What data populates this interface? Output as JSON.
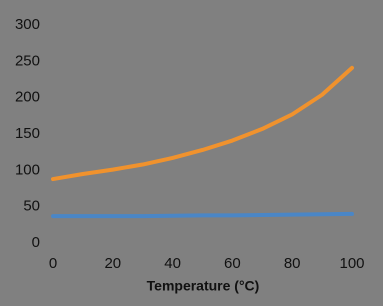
{
  "chart_data": {
    "type": "line",
    "x_label": "Temperature (°C)",
    "x": [
      0,
      10,
      20,
      30,
      40,
      50,
      60,
      70,
      80,
      90,
      100
    ],
    "series": [
      {
        "color": "#f0922d",
        "values": [
          88,
          95,
          101,
          108,
          117,
          128,
          141,
          157,
          177,
          204,
          241
        ]
      },
      {
        "color": "#4a86c6",
        "values": [
          37,
          37,
          37,
          37,
          37.5,
          38,
          38,
          38.5,
          39,
          39.5,
          40
        ]
      }
    ],
    "xlim": [
      0,
      100
    ],
    "xticks": [
      0,
      20,
      40,
      60,
      80,
      100
    ],
    "ylim": [
      0,
      300
    ],
    "yticks": [
      0,
      50,
      100,
      150,
      200,
      250,
      300
    ],
    "grid": false
  }
}
